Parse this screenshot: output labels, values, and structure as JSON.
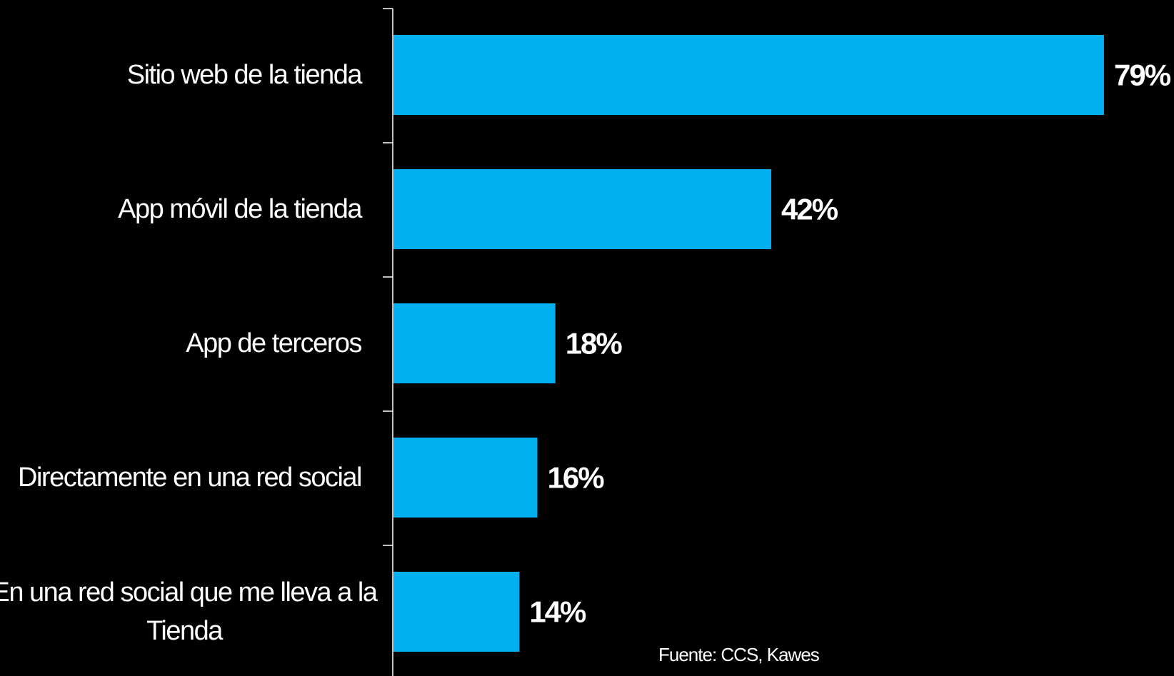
{
  "chart_data": {
    "type": "bar",
    "orientation": "horizontal",
    "categories": [
      [
        "Sitio web de la tienda"
      ],
      [
        "App móvil de la tienda"
      ],
      [
        "App de terceros"
      ],
      [
        "Directamente en una red social"
      ],
      [
        "En una red social que me lleva a la",
        "Tienda"
      ]
    ],
    "values": [
      79,
      42,
      18,
      16,
      14
    ],
    "data_labels": [
      "79%",
      "42%",
      "18%",
      "16%",
      "14%"
    ],
    "xlim": [
      0,
      79
    ],
    "bar_color": "#00B0F0",
    "background_color": "#000000",
    "text_color": "#FFFFFF",
    "grid": false,
    "legend": "none",
    "title": "",
    "xlabel": "",
    "ylabel": ""
  },
  "source": "Fuente: CCS, Kawes"
}
